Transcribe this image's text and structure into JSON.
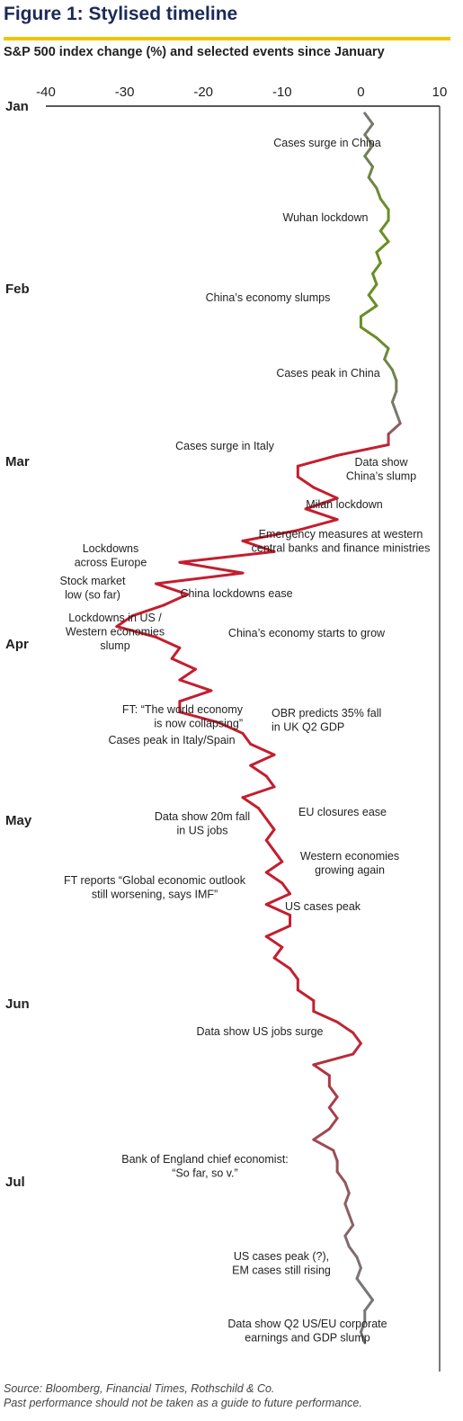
{
  "figure_title": "Figure 1: Stylised timeline",
  "subtitle": "S&P 500 index change (%) and selected events since January",
  "source_note": "Source: Bloomberg, Financial Times, Rothschild & Co.",
  "disclaimer": "Past performance should not be taken as a guide to future performance.",
  "colors": {
    "title": "#1b2a57",
    "rule": "#f2c400",
    "green": "#6b8e23",
    "grey": "#777777",
    "red": "#c41e2e"
  },
  "chart_data": {
    "type": "line",
    "orientation": "vertical-time",
    "xlim": [
      -40,
      10
    ],
    "x_ticks": [
      "-40",
      "-30",
      "-20",
      "-10",
      "0",
      "10"
    ],
    "months": [
      "Jan",
      "Feb",
      "Mar",
      "Apr",
      "May",
      "Jun",
      "Jul"
    ],
    "series": [
      {
        "unit": "%",
        "values": [
          0.5,
          1.5,
          0.5,
          1.5,
          0.5,
          1.5,
          1.0,
          2.0,
          2.5,
          3.5,
          3.5,
          2.5,
          3.5,
          2.0,
          2.5,
          1.5,
          2.0,
          1.0,
          2.0,
          0.0,
          0.0,
          2.0,
          3.5,
          3.0,
          4.0,
          4.5,
          4.5,
          4.0,
          4.5,
          5.0,
          3.5,
          3.5,
          -3.0,
          -8.0,
          -8.0,
          -6.0,
          -3.0,
          -7.0,
          -3.0,
          -8.0,
          -15.0,
          -11.0,
          -23.0,
          -15.0,
          -26.0,
          -22.0,
          -25.0,
          -29.0,
          -31.0,
          -26.0,
          -23.0,
          -24.0,
          -21.0,
          -23.0,
          -19.0,
          -23.0,
          -23.0,
          -18.0,
          -15.0,
          -14.0,
          -11.0,
          -14.0,
          -12.0,
          -11.0,
          -15.0,
          -13.0,
          -12.0,
          -11.0,
          -12.0,
          -11.0,
          -10.0,
          -12.0,
          -10.0,
          -9.0,
          -12.0,
          -9.0,
          -9.0,
          -12.0,
          -10.0,
          -11.0,
          -9.0,
          -8.0,
          -8.0,
          -6.0,
          -6.0,
          -3.0,
          -1.0,
          0.0,
          -1.0,
          -6.0,
          -4.0,
          -4.0,
          -3.0,
          -4.0,
          -3.0,
          -4.0,
          -6.0,
          -3.5,
          -3.0,
          -3.0,
          -2.0,
          -1.5,
          -2.0,
          -1.5,
          -1.0,
          -2.0,
          -1.5,
          -0.5,
          0.0,
          -0.5,
          0.5,
          1.5,
          0.5,
          0.5,
          0.0,
          0.5
        ]
      }
    ],
    "annotations": [
      {
        "text": [
          "Cases surge in China"
        ],
        "month_pos": 0.2
      },
      {
        "text": [
          "Wuhan lockdown"
        ],
        "month_pos": 0.62
      },
      {
        "text": [
          "China’s economy slumps"
        ],
        "month_pos": 1.05
      },
      {
        "text": [
          "Cases peak in China"
        ],
        "month_pos": 1.47
      },
      {
        "text": [
          "Cases surge in Italy"
        ],
        "month_pos": 1.9
      },
      {
        "text": [
          "Data show",
          "China’s slump"
        ],
        "month_pos": 2.05
      },
      {
        "text": [
          "Milan lockdown"
        ],
        "month_pos": 2.25
      },
      {
        "text": [
          "Emergency measures at western",
          "central banks and finance ministries"
        ],
        "month_pos": 2.45
      },
      {
        "text": [
          "Lockdowns",
          "across Europe"
        ],
        "month_pos": 2.55
      },
      {
        "text": [
          "Stock market",
          "low (so far)"
        ],
        "month_pos": 2.7
      },
      {
        "text": [
          "China lockdowns ease"
        ],
        "month_pos": 2.75
      },
      {
        "text": [
          "Lockdowns in US /",
          "Western economies",
          "slump"
        ],
        "month_pos": 2.95
      },
      {
        "text": [
          "China’s economy starts to grow"
        ],
        "month_pos": 2.98
      },
      {
        "text": [
          "FT: “The world economy",
          "is now collapsing”"
        ],
        "month_pos": 3.4
      },
      {
        "text": [
          "OBR predicts 35% fall",
          "in UK Q2 GDP"
        ],
        "month_pos": 3.45
      },
      {
        "text": [
          "Cases peak in Italy/Spain"
        ],
        "month_pos": 3.5
      },
      {
        "text": [
          "EU closures ease"
        ],
        "month_pos": 3.93
      },
      {
        "text": [
          "Data show 20m fall",
          "in US jobs"
        ],
        "month_pos": 4.0
      },
      {
        "text": [
          "Western economies",
          "growing again"
        ],
        "month_pos": 4.23
      },
      {
        "text": [
          "FT reports “Global economic outlook",
          "still worsening, says IMF”"
        ],
        "month_pos": 4.37
      },
      {
        "text": [
          "US cases peak"
        ],
        "month_pos": 4.48
      },
      {
        "text": [
          "Data show US jobs surge"
        ],
        "month_pos": 5.16
      },
      {
        "text": [
          "Bank of England chief economist:",
          "“So far, so v.”"
        ],
        "month_pos": 5.9
      },
      {
        "text": [
          "US cases peak (?),",
          "EM cases still rising"
        ],
        "month_pos": 6.43
      },
      {
        "text": [
          "Data show Q2 US/EU corporate",
          "earnings and GDP slump"
        ],
        "month_pos": 6.82
      }
    ]
  }
}
